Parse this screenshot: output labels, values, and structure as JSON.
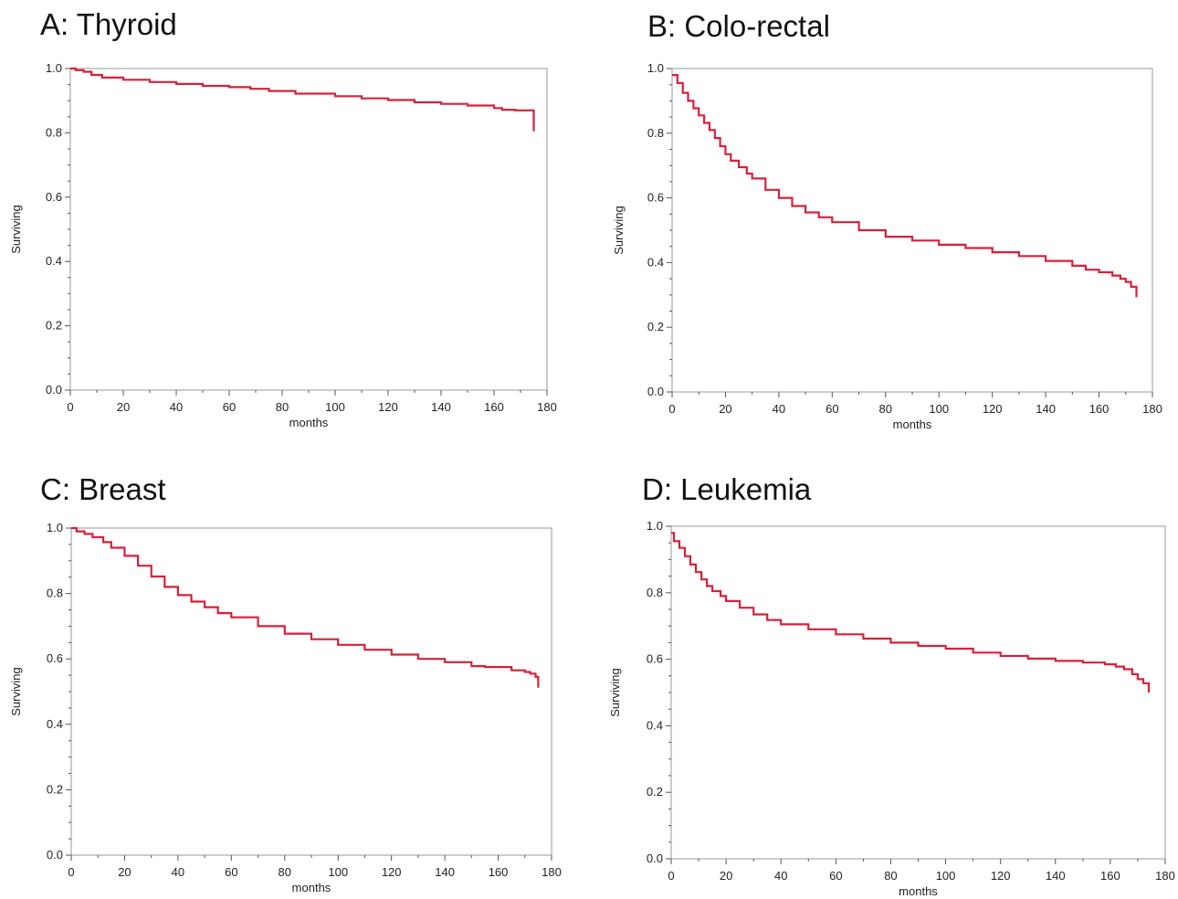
{
  "colors": {
    "curve": "#d6213a",
    "frame": "#a9a9a9",
    "text": "#222222"
  },
  "chart_data": [
    {
      "type": "line",
      "title": "A: Thyroid",
      "xlabel": "months",
      "ylabel": "Surviving",
      "xlim": [
        0,
        180
      ],
      "ylim": [
        0,
        1.0
      ],
      "xticks": [
        0,
        20,
        40,
        60,
        80,
        100,
        120,
        140,
        160,
        180
      ],
      "yticks": [
        0.0,
        0.2,
        0.4,
        0.6,
        0.8,
        1.0
      ],
      "grid": false,
      "series": [
        {
          "step": true,
          "x": [
            0,
            2,
            5,
            8,
            12,
            20,
            30,
            40,
            50,
            60,
            68,
            75,
            85,
            100,
            110,
            120,
            130,
            140,
            150,
            160,
            163,
            168,
            175,
            175
          ],
          "y": [
            1.0,
            0.995,
            0.99,
            0.98,
            0.972,
            0.965,
            0.958,
            0.952,
            0.946,
            0.942,
            0.937,
            0.93,
            0.922,
            0.914,
            0.907,
            0.902,
            0.895,
            0.89,
            0.885,
            0.877,
            0.872,
            0.87,
            0.87,
            0.805
          ]
        }
      ]
    },
    {
      "type": "line",
      "title": "B: Colo-rectal",
      "xlabel": "months",
      "ylabel": "Surviving",
      "xlim": [
        0,
        180
      ],
      "ylim": [
        0,
        1.0
      ],
      "xticks": [
        0,
        20,
        40,
        60,
        80,
        100,
        120,
        140,
        160,
        180
      ],
      "yticks": [
        0.0,
        0.2,
        0.4,
        0.6,
        0.8,
        1.0
      ],
      "grid": false,
      "series": [
        {
          "step": true,
          "x": [
            0,
            2,
            4,
            6,
            8,
            10,
            12,
            14,
            16,
            18,
            20,
            22,
            25,
            28,
            30,
            35,
            40,
            45,
            50,
            55,
            60,
            70,
            80,
            90,
            100,
            110,
            120,
            130,
            140,
            150,
            155,
            160,
            165,
            168,
            170,
            172,
            174,
            174
          ],
          "y": [
            0.98,
            0.955,
            0.925,
            0.9,
            0.877,
            0.855,
            0.832,
            0.81,
            0.785,
            0.76,
            0.735,
            0.715,
            0.695,
            0.675,
            0.66,
            0.625,
            0.6,
            0.575,
            0.555,
            0.54,
            0.525,
            0.5,
            0.48,
            0.468,
            0.455,
            0.445,
            0.432,
            0.42,
            0.405,
            0.39,
            0.378,
            0.37,
            0.36,
            0.35,
            0.34,
            0.325,
            0.318,
            0.293
          ]
        }
      ]
    },
    {
      "type": "line",
      "title": "C: Breast",
      "xlabel": "months",
      "ylabel": "Surviving",
      "xlim": [
        0,
        180
      ],
      "ylim": [
        0,
        1.0
      ],
      "xticks": [
        0,
        20,
        40,
        60,
        80,
        100,
        120,
        140,
        160,
        180
      ],
      "yticks": [
        0.0,
        0.2,
        0.4,
        0.6,
        0.8,
        1.0
      ],
      "grid": false,
      "series": [
        {
          "step": true,
          "x": [
            0,
            2,
            5,
            8,
            12,
            15,
            20,
            25,
            30,
            35,
            40,
            45,
            50,
            55,
            60,
            70,
            80,
            90,
            100,
            110,
            120,
            130,
            140,
            150,
            155,
            160,
            165,
            170,
            172,
            174,
            175,
            175
          ],
          "y": [
            1.0,
            0.99,
            0.982,
            0.972,
            0.957,
            0.94,
            0.915,
            0.885,
            0.852,
            0.82,
            0.795,
            0.775,
            0.758,
            0.74,
            0.727,
            0.7,
            0.677,
            0.66,
            0.643,
            0.628,
            0.613,
            0.6,
            0.59,
            0.578,
            0.575,
            0.575,
            0.565,
            0.56,
            0.555,
            0.545,
            0.535,
            0.512
          ]
        }
      ]
    },
    {
      "type": "line",
      "title": "D: Leukemia",
      "xlabel": "months",
      "ylabel": "Surviving",
      "xlim": [
        0,
        180
      ],
      "ylim": [
        0,
        1.0
      ],
      "xticks": [
        0,
        20,
        40,
        60,
        80,
        100,
        120,
        140,
        160,
        180
      ],
      "yticks": [
        0.0,
        0.2,
        0.4,
        0.6,
        0.8,
        1.0
      ],
      "grid": false,
      "series": [
        {
          "step": true,
          "x": [
            0,
            1,
            3,
            5,
            7,
            9,
            11,
            13,
            15,
            18,
            20,
            25,
            30,
            35,
            40,
            50,
            60,
            70,
            80,
            90,
            100,
            110,
            120,
            130,
            140,
            150,
            158,
            162,
            165,
            168,
            170,
            172,
            174,
            174
          ],
          "y": [
            0.98,
            0.955,
            0.935,
            0.91,
            0.885,
            0.862,
            0.84,
            0.82,
            0.805,
            0.79,
            0.775,
            0.755,
            0.735,
            0.718,
            0.705,
            0.69,
            0.675,
            0.662,
            0.65,
            0.64,
            0.632,
            0.62,
            0.61,
            0.602,
            0.595,
            0.59,
            0.585,
            0.578,
            0.57,
            0.555,
            0.54,
            0.528,
            0.515,
            0.5
          ]
        }
      ]
    }
  ]
}
